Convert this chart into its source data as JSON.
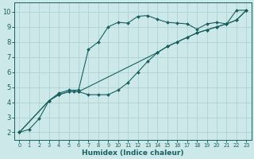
{
  "title": "",
  "xlabel": "Humidex (Indice chaleur)",
  "bg_color": "#cce8e8",
  "grid_color": "#aacece",
  "line_color": "#1a6060",
  "xlim": [
    -0.5,
    23.5
  ],
  "ylim": [
    1.5,
    10.6
  ],
  "xticks": [
    0,
    1,
    2,
    3,
    4,
    5,
    6,
    7,
    8,
    9,
    10,
    11,
    12,
    13,
    14,
    15,
    16,
    17,
    18,
    19,
    20,
    21,
    22,
    23
  ],
  "yticks": [
    2,
    3,
    4,
    5,
    6,
    7,
    8,
    9,
    10
  ],
  "series": [
    {
      "x": [
        0,
        1,
        2,
        3,
        4,
        5,
        6,
        7,
        8,
        9,
        10,
        11,
        12,
        13,
        14,
        15,
        16,
        17,
        18,
        19,
        20,
        21,
        22,
        23
      ],
      "y": [
        2.0,
        2.2,
        2.9,
        4.1,
        4.6,
        4.8,
        4.8,
        7.5,
        8.0,
        9.0,
        9.3,
        9.25,
        9.7,
        9.75,
        9.5,
        9.3,
        9.25,
        9.2,
        8.85,
        9.2,
        9.3,
        9.2,
        10.1,
        10.1
      ]
    },
    {
      "x": [
        0,
        3,
        4,
        5,
        5.5,
        6,
        7,
        8,
        9,
        10,
        11,
        12,
        13,
        14,
        15,
        16,
        17,
        18,
        19,
        20,
        21,
        22,
        23
      ],
      "y": [
        2.0,
        4.1,
        4.5,
        4.7,
        4.7,
        4.7,
        4.5,
        4.5,
        4.5,
        4.8,
        5.3,
        6.0,
        6.7,
        7.3,
        7.7,
        8.0,
        8.3,
        8.6,
        8.8,
        9.0,
        9.2,
        9.45,
        10.1
      ]
    },
    {
      "x": [
        0,
        3,
        4,
        5,
        6,
        14,
        15,
        16,
        17,
        18,
        19,
        20,
        21,
        22,
        23
      ],
      "y": [
        2.0,
        4.1,
        4.5,
        4.7,
        4.7,
        7.3,
        7.7,
        8.0,
        8.3,
        8.6,
        8.8,
        9.0,
        9.2,
        9.45,
        10.1
      ]
    }
  ]
}
